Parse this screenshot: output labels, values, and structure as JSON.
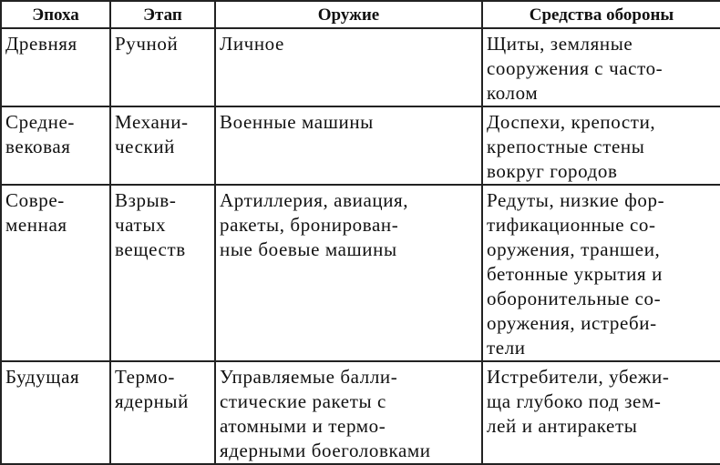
{
  "headers": [
    "Эпоха",
    "Этап",
    "Оружие",
    "Средства обороны"
  ],
  "rows": [
    {
      "epoch": [
        "Древняя"
      ],
      "stage": [
        "Ручной"
      ],
      "weapons": [
        "Личное"
      ],
      "defense": [
        "Щиты, земляные",
        "сооружения с часто-",
        "колом"
      ]
    },
    {
      "epoch": [
        "Средне-",
        "вековая"
      ],
      "stage": [
        "Механи-",
        "ческий"
      ],
      "weapons": [
        "Военные машины"
      ],
      "defense": [
        "Доспехи, крепости,",
        "крепостные стены",
        "вокруг городов"
      ]
    },
    {
      "epoch": [
        "Совре-",
        "менная"
      ],
      "stage": [
        "Взрыв-",
        "чатых",
        "веществ"
      ],
      "weapons": [
        "Артиллерия, авиация,",
        "ракеты, бронирован-",
        "ные боевые машины"
      ],
      "defense": [
        "Редуты, низкие фор-",
        "тификационные со-",
        "оружения, траншеи,",
        "бетонные укрытия и",
        "оборонительные со-",
        "оружения, истреби-",
        "тели"
      ]
    },
    {
      "epoch": [
        "Будущая"
      ],
      "stage": [
        "Термо-",
        "ядерный"
      ],
      "weapons": [
        "Управляемые балли-",
        "стические ракеты с",
        "атомными и термо-",
        "ядерными боеголовками"
      ],
      "defense": [
        "Истребители, убежи-",
        "ща глубоко под зем-",
        "лей и антиракеты"
      ]
    }
  ]
}
